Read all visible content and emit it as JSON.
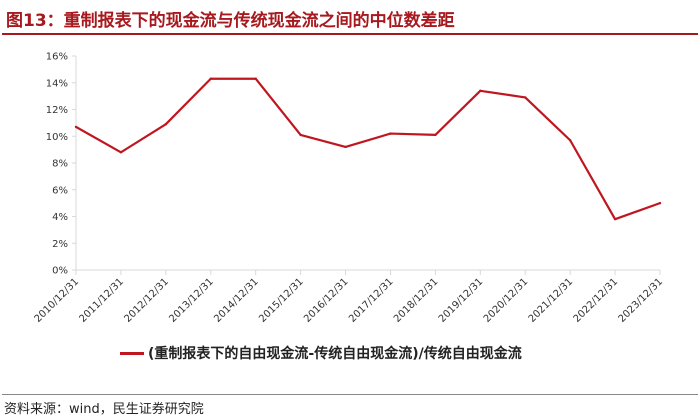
{
  "header": {
    "title": "图13：重制报表下的现金流与传统现金流之间的中位数差距"
  },
  "footer": {
    "source": "资料来源：wind，民生证券研究院"
  },
  "colors": {
    "title": "#a7191e",
    "series": "#c0161f",
    "axis": "#d9d9d9"
  },
  "chart_data": {
    "type": "line",
    "title": "图13：重制报表下的现金流与传统现金流之间的中位数差距",
    "xlabel": "",
    "ylabel": "",
    "categories": [
      "2010/12/31",
      "2011/12/31",
      "2012/12/31",
      "2013/12/31",
      "2014/12/31",
      "2015/12/31",
      "2016/12/31",
      "2017/12/31",
      "2018/12/31",
      "2019/12/31",
      "2020/12/31",
      "2021/12/31",
      "2022/12/31",
      "2023/12/31"
    ],
    "ylim": [
      0,
      16
    ],
    "yticks": [
      0,
      2,
      4,
      6,
      8,
      10,
      12,
      14,
      16
    ],
    "ytick_labels": [
      "0%",
      "2%",
      "4%",
      "6%",
      "8%",
      "10%",
      "12%",
      "14%",
      "16%"
    ],
    "grid": false,
    "legend_position": "bottom",
    "series": [
      {
        "name": "(重制报表下的自由现金流-传统自由现金流)/传统自由现金流",
        "values": [
          10.7,
          8.8,
          10.9,
          14.3,
          14.3,
          10.1,
          9.2,
          10.2,
          10.1,
          13.4,
          12.9,
          9.7,
          3.8,
          5.0
        ]
      }
    ]
  }
}
